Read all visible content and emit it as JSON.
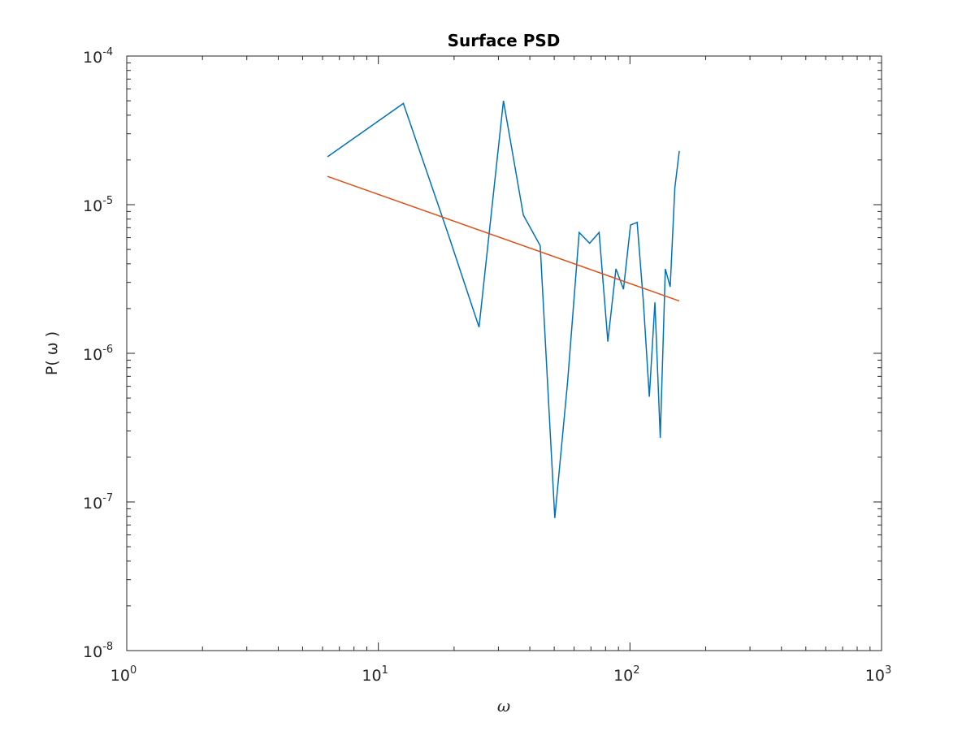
{
  "chart_data": {
    "type": "line",
    "title": "Surface PSD",
    "xlabel": "ω",
    "ylabel": "P( ω )",
    "xscale": "log",
    "yscale": "log",
    "xlim": [
      1,
      1000
    ],
    "ylim": [
      1e-08,
      0.0001
    ],
    "grid": false,
    "legend": "none",
    "x_ticks": [
      {
        "value": 1,
        "base": "10",
        "exp": "0"
      },
      {
        "value": 10,
        "base": "10",
        "exp": "1"
      },
      {
        "value": 100,
        "base": "10",
        "exp": "2"
      },
      {
        "value": 1000,
        "base": "10",
        "exp": "3"
      }
    ],
    "y_ticks": [
      {
        "value": 1e-08,
        "base": "10",
        "exp": "-8"
      },
      {
        "value": 1e-07,
        "base": "10",
        "exp": "-7"
      },
      {
        "value": 1e-06,
        "base": "10",
        "exp": "-6"
      },
      {
        "value": 1e-05,
        "base": "10",
        "exp": "-5"
      },
      {
        "value": 0.0001,
        "base": "10",
        "exp": "-4"
      }
    ],
    "series": [
      {
        "color": "#0072bd",
        "x": [
          6.28,
          12.57,
          18.85,
          25.13,
          31.42,
          37.7,
          43.98,
          50.27,
          56.55,
          62.83,
          69.12,
          75.4,
          81.68,
          87.96,
          94.25,
          100.53,
          106.81,
          113.1,
          119.38,
          125.66,
          131.95,
          138.23,
          144.51,
          150.8,
          157.08
        ],
        "y": [
          2.1e-05,
          4.8e-05,
          6.5e-06,
          1.5e-06,
          5e-05,
          8.5e-06,
          5.3e-06,
          7.8e-08,
          6.5e-07,
          6.5e-06,
          5.5e-06,
          6.5e-06,
          1.2e-06,
          3.7e-06,
          2.7e-06,
          7.3e-06,
          7.6e-06,
          2.2e-06,
          5.1e-07,
          2.2e-06,
          2.7e-07,
          3.7e-06,
          2.8e-06,
          1.3e-05,
          2.3e-05
        ]
      },
      {
        "color": "#d95319",
        "x": [
          6.28,
          157.08
        ],
        "y": [
          1.55e-05,
          2.25e-06
        ]
      }
    ]
  }
}
